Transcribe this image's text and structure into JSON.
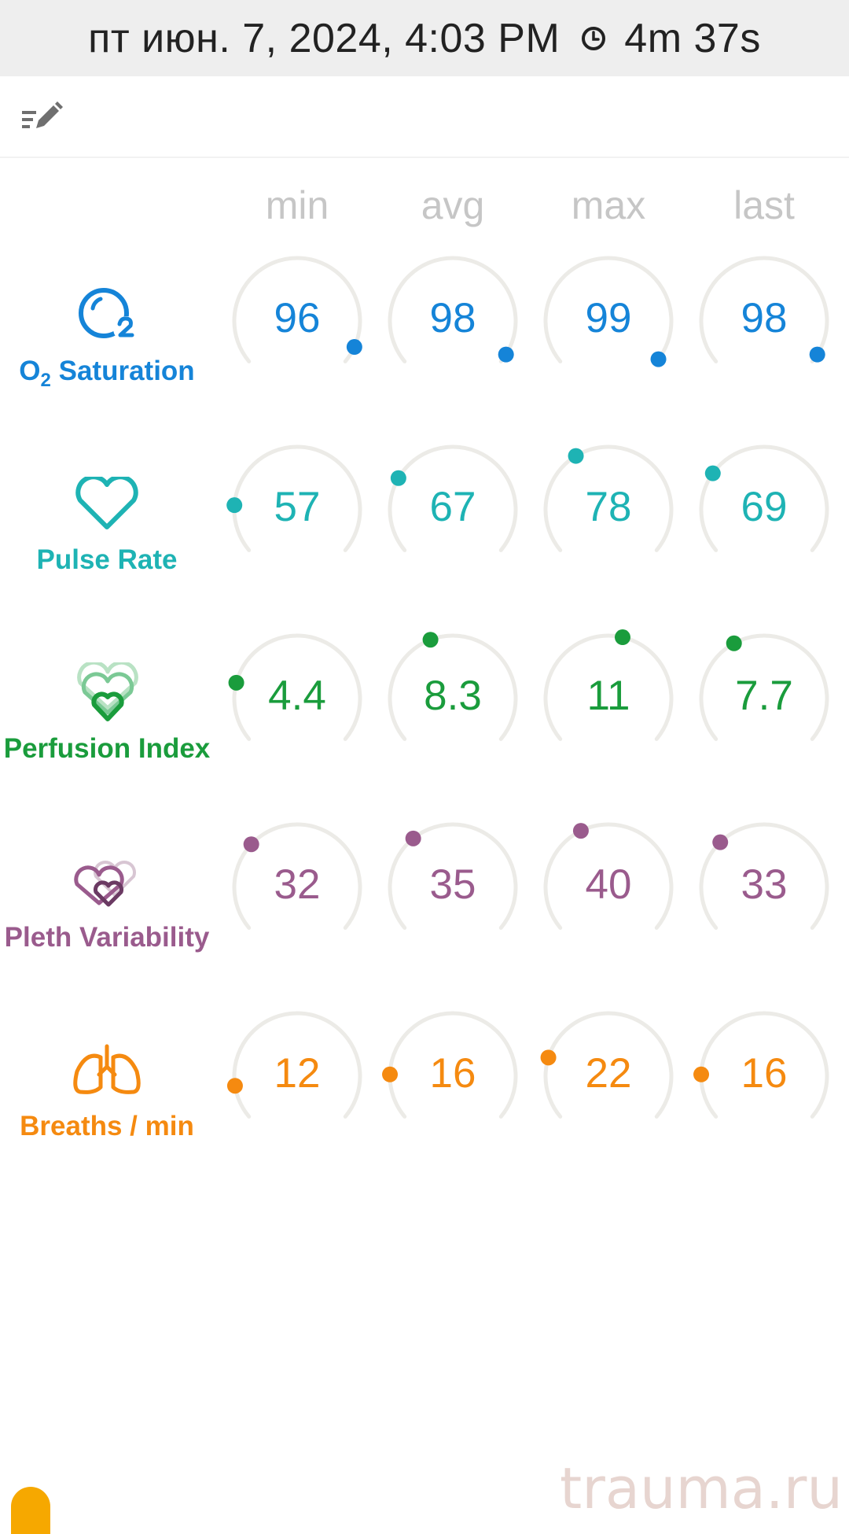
{
  "status_bar": {
    "datetime": "пт июн. 7, 2024, 4:03 PM",
    "duration": "4m 37s"
  },
  "toolbar": {
    "edit_icon": "edit-list-icon"
  },
  "columns": [
    "min",
    "avg",
    "max",
    "last"
  ],
  "rows": [
    {
      "label_main": "O",
      "label_sub": "2",
      "label_rest": " Saturation",
      "color": "#1584d8",
      "icon": "o2-bubble-icon",
      "values": [
        "96",
        "98",
        "99",
        "98"
      ],
      "levels": [
        0.94,
        0.97,
        0.99,
        0.97
      ]
    },
    {
      "label": "Pulse Rate",
      "color": "#1eb3b4",
      "icon": "heart-icon",
      "values": [
        "57",
        "67",
        "78",
        "69"
      ],
      "levels": [
        0.17,
        0.27,
        0.38,
        0.29
      ]
    },
    {
      "label": "Perfusion Index",
      "color": "#1a9c3c",
      "icon": "layered-hearts-icon",
      "values": [
        "4.4",
        "8.3",
        "11",
        "7.7"
      ],
      "levels": [
        0.21,
        0.42,
        0.55,
        0.39
      ]
    },
    {
      "label": "Pleth Variability",
      "color": "#9a5b8d",
      "icon": "intertwined-hearts-icon",
      "values": [
        "32",
        "35",
        "40",
        "33"
      ],
      "levels": [
        0.32,
        0.35,
        0.4,
        0.33
      ]
    },
    {
      "label": "Breaths / min",
      "color": "#f58a10",
      "icon": "lungs-icon",
      "values": [
        "12",
        "16",
        "22",
        "16"
      ],
      "levels": [
        0.12,
        0.16,
        0.22,
        0.16
      ]
    }
  ],
  "track_color": "#ecebe7",
  "watermark": "trauma.ru"
}
